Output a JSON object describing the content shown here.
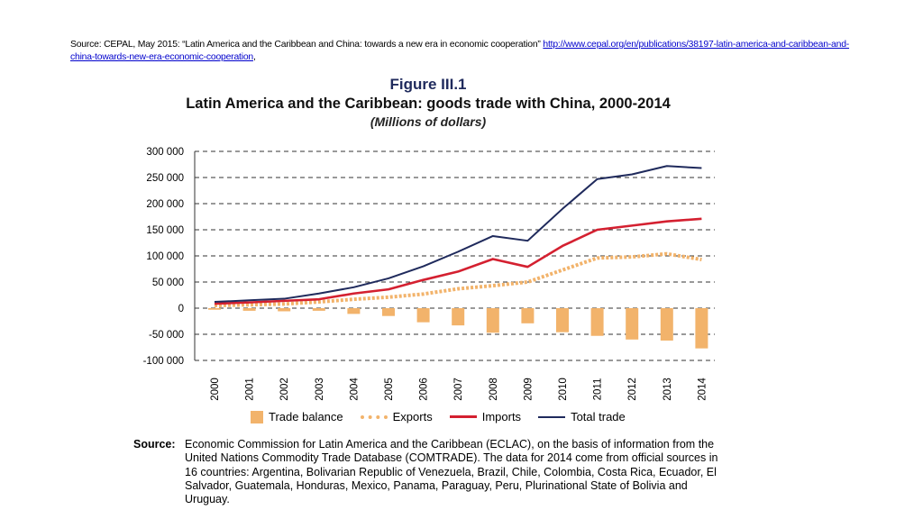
{
  "header": {
    "source_prefix": "Source: CEPAL, May 2015: “Latin America and the Caribbean and China: towards a new era in economic cooperation” ",
    "source_link": "http://www.cepal.org/en/publications/38197-latin-america-and-caribbean-and-china-towards-new-era-economic-cooperation",
    "source_suffix": ","
  },
  "figure": {
    "number": "Figure III.1",
    "title": "Latin America and the Caribbean: goods trade with China, 2000-2014",
    "subtitle": "(Millions of dollars)"
  },
  "chart_data": {
    "type": "bar",
    "title": "Latin America and the Caribbean: goods trade with China, 2000-2014",
    "subtitle": "(Millions of dollars)",
    "xlabel": "",
    "ylabel": "",
    "ylim": [
      -100000,
      300000
    ],
    "yticks": [
      300000,
      250000,
      200000,
      150000,
      100000,
      50000,
      0,
      -50000,
      -100000
    ],
    "ytick_labels": [
      "300 000",
      "250 000",
      "200 000",
      "150 000",
      "100 000",
      "50 000",
      "0",
      "-50 000",
      "-100 000"
    ],
    "grid": true,
    "categories": [
      "2000",
      "2001",
      "2002",
      "2003",
      "2004",
      "2005",
      "2006",
      "2007",
      "2008",
      "2009",
      "2010",
      "2011",
      "2012",
      "2013",
      "2014"
    ],
    "series": [
      {
        "name": "Trade balance",
        "type": "bar",
        "color": "#f2b36b",
        "values": [
          -3000,
          -5000,
          -6000,
          -5000,
          -11000,
          -15000,
          -27000,
          -33000,
          -47000,
          -29000,
          -46000,
          -53000,
          -60000,
          -62000,
          -77000
        ]
      },
      {
        "name": "Exports",
        "type": "dotted-line",
        "color": "#f2b36b",
        "values": [
          5000,
          6500,
          8000,
          12000,
          17000,
          21000,
          27000,
          37000,
          43000,
          50000,
          73000,
          96000,
          98000,
          104000,
          93000
        ]
      },
      {
        "name": "Imports",
        "type": "line",
        "color": "#d42030",
        "values": [
          8500,
          11000,
          14000,
          17000,
          28000,
          36000,
          54000,
          70000,
          94000,
          79000,
          119000,
          150000,
          158000,
          166000,
          171000
        ]
      },
      {
        "name": "Total trade",
        "type": "line",
        "color": "#1f2a5c",
        "values": [
          12000,
          15000,
          18000,
          28000,
          40000,
          57000,
          80000,
          108000,
          138000,
          129000,
          190000,
          247000,
          256000,
          272000,
          268000
        ]
      }
    ],
    "legend_position": "bottom"
  },
  "legend": [
    "Trade balance",
    "Exports",
    "Imports",
    "Total trade"
  ],
  "footer": {
    "label": "Source:",
    "text": "Economic Commission for Latin America and the Caribbean (ECLAC), on the basis of information from the United Nations Commodity Trade Database (COMTRADE). The data for 2014 come from official sources in 16 countries: Argentina, Bolivarian Republic of Venezuela, Brazil, Chile, Colombia, Costa Rica, Ecuador, El Salvador, Guatemala, Honduras, Mexico, Panama, Paraguay, Peru, Plurinational State of Bolivia and Uruguay."
  }
}
